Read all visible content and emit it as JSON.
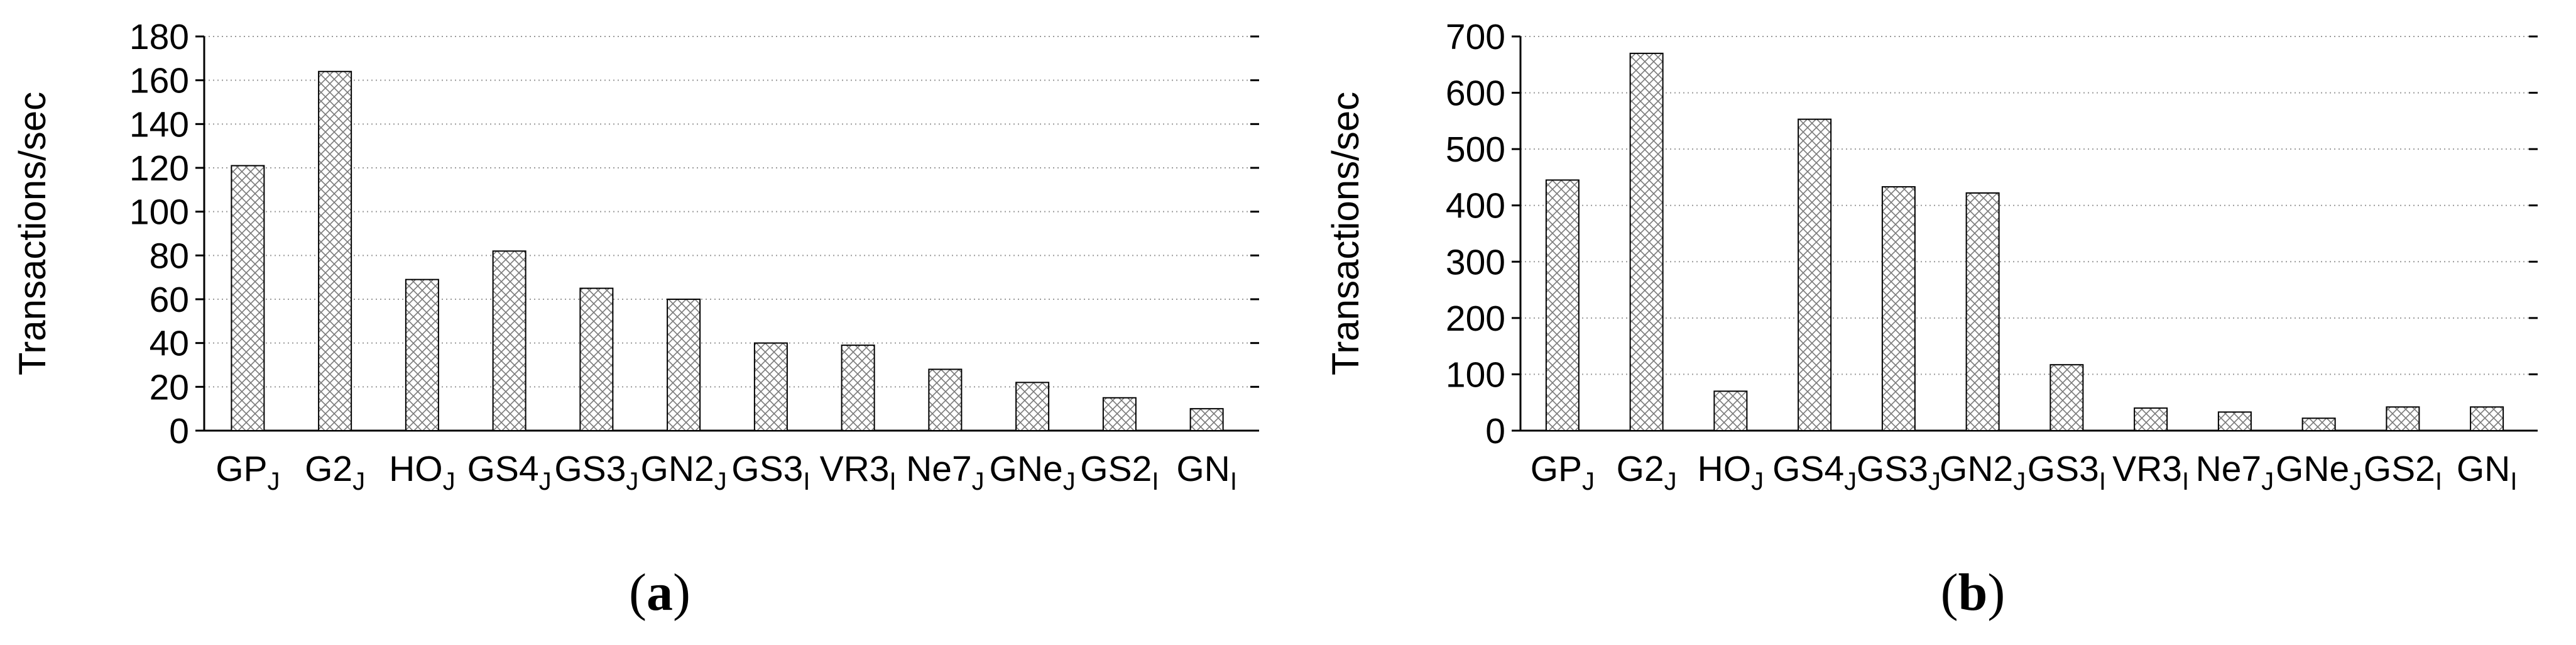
{
  "figure": {
    "panels": [
      {
        "caption_open": "(",
        "caption_letter": "a",
        "caption_close": ")"
      },
      {
        "caption_open": "(",
        "caption_letter": "b",
        "caption_close": ")"
      }
    ]
  },
  "chart_data": [
    {
      "type": "bar",
      "title": "",
      "xlabel": "",
      "ylabel": "Transactions/sec",
      "ylim": [
        0,
        180
      ],
      "yticks": [
        0,
        20,
        40,
        60,
        80,
        100,
        120,
        140,
        160,
        180
      ],
      "grid": "horizontal dotted",
      "categories": [
        {
          "base": "GP",
          "sub": "J"
        },
        {
          "base": "G2",
          "sub": "J"
        },
        {
          "base": "HO",
          "sub": "J"
        },
        {
          "base": "GS4",
          "sub": "J"
        },
        {
          "base": "GS3",
          "sub": "J"
        },
        {
          "base": "GN2",
          "sub": "J"
        },
        {
          "base": "GS3",
          "sub": "I"
        },
        {
          "base": "VR3",
          "sub": "I"
        },
        {
          "base": "Ne7",
          "sub": "J"
        },
        {
          "base": "GNe",
          "sub": "J"
        },
        {
          "base": "GS2",
          "sub": "I"
        },
        {
          "base": "GN",
          "sub": "I"
        }
      ],
      "values": [
        121,
        164,
        69,
        82,
        65,
        60,
        40,
        39,
        28,
        22,
        15,
        10
      ]
    },
    {
      "type": "bar",
      "title": "",
      "xlabel": "",
      "ylabel": "Transactions/sec",
      "ylim": [
        0,
        700
      ],
      "yticks": [
        0,
        100,
        200,
        300,
        400,
        500,
        600,
        700
      ],
      "grid": "horizontal dotted",
      "categories": [
        {
          "base": "GP",
          "sub": "J"
        },
        {
          "base": "G2",
          "sub": "J"
        },
        {
          "base": "HO",
          "sub": "J"
        },
        {
          "base": "GS4",
          "sub": "J"
        },
        {
          "base": "GS3",
          "sub": "J"
        },
        {
          "base": "GN2",
          "sub": "J"
        },
        {
          "base": "GS3",
          "sub": "I"
        },
        {
          "base": "VR3",
          "sub": "I"
        },
        {
          "base": "Ne7",
          "sub": "J"
        },
        {
          "base": "GNe",
          "sub": "J"
        },
        {
          "base": "GS2",
          "sub": "I"
        },
        {
          "base": "GN",
          "sub": "I"
        }
      ],
      "values": [
        445,
        670,
        70,
        553,
        433,
        422,
        117,
        40,
        33,
        22,
        42,
        42
      ]
    }
  ]
}
